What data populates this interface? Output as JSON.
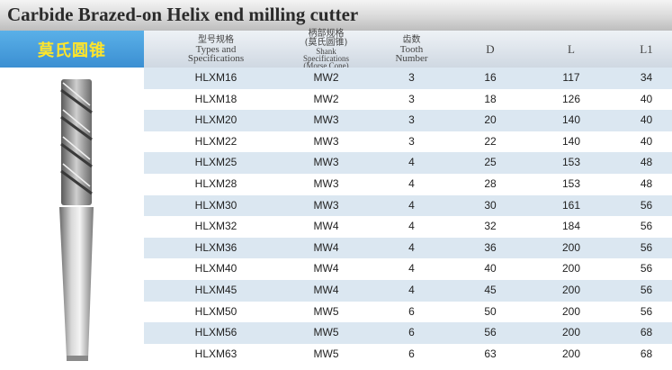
{
  "title": "Carbide Brazed-on Helix end milling cutter",
  "chinese_label": "莫氏圆锥",
  "columns": [
    {
      "cn": "型号规格",
      "en": [
        "Types and",
        "Specifications"
      ]
    },
    {
      "cn": "柄部规格",
      "cn2": "(莫氏圆锥)",
      "en": [
        "Shank",
        "Specifications",
        "(Morse Cone)"
      ]
    },
    {
      "cn": "齿数",
      "en": [
        "Tooth",
        "Number"
      ]
    },
    {
      "label": "D"
    },
    {
      "label": "L"
    },
    {
      "label": "L1"
    }
  ],
  "rows": [
    [
      "HLXM16",
      "MW2",
      "3",
      "16",
      "117",
      "34"
    ],
    [
      "HLXM18",
      "MW2",
      "3",
      "18",
      "126",
      "40"
    ],
    [
      "HLXM20",
      "MW3",
      "3",
      "20",
      "140",
      "40"
    ],
    [
      "HLXM22",
      "MW3",
      "3",
      "22",
      "140",
      "40"
    ],
    [
      "HLXM25",
      "MW3",
      "4",
      "25",
      "153",
      "48"
    ],
    [
      "HLXM28",
      "MW3",
      "4",
      "28",
      "153",
      "48"
    ],
    [
      "HLXM30",
      "MW3",
      "4",
      "30",
      "161",
      "56"
    ],
    [
      "HLXM32",
      "MW4",
      "4",
      "32",
      "184",
      "56"
    ],
    [
      "HLXM36",
      "MW4",
      "4",
      "36",
      "200",
      "56"
    ],
    [
      "HLXM40",
      "MW4",
      "4",
      "40",
      "200",
      "56"
    ],
    [
      "HLXM45",
      "MW4",
      "4",
      "45",
      "200",
      "56"
    ],
    [
      "HLXM50",
      "MW5",
      "6",
      "50",
      "200",
      "56"
    ],
    [
      "HLXM56",
      "MW5",
      "6",
      "56",
      "200",
      "68"
    ],
    [
      "HLXM63",
      "MW5",
      "6",
      "63",
      "200",
      "68"
    ]
  ]
}
